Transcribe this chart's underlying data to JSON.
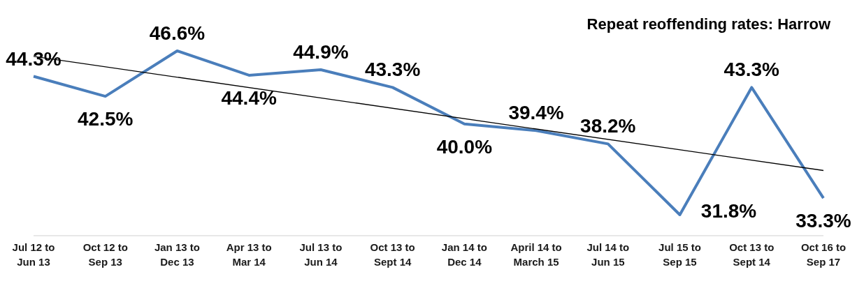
{
  "chart_data": {
    "type": "line",
    "title": "Repeat reoffending rates: Harrow",
    "categories": [
      "Jul 12 to Jun 13",
      "Oct 12 to Sep 13",
      "Jan 13 to Dec 13",
      "Apr 13  to Mar 14",
      "Jul 13 to Jun 14",
      "Oct 13 to Sept 14",
      "Jan 14 to Dec 14",
      "April 14 to March 15",
      "Jul 14 to Jun 15",
      "Jul 15 to Sep 15",
      "Oct 13 to Sept 14",
      "Oct 16 to Sep 17"
    ],
    "series": [
      {
        "color": "#4a7ebb",
        "values": [
          44.3,
          42.5,
          46.6,
          44.4,
          44.9,
          43.3,
          40.0,
          39.4,
          38.2,
          31.8,
          43.3,
          33.3
        ],
        "value_labels": [
          "44.3%",
          "42.5%",
          "46.6%",
          "44.4%",
          "44.9%",
          "43.3%",
          "40.0%",
          "39.4%",
          "38.2%",
          "31.8%",
          "43.3%",
          "33.3%"
        ]
      },
      {
        "type": "line",
        "color": "#000000",
        "x": [
          "Jul 12 to Jun 13",
          "Oct 16 to Sep 17"
        ],
        "values": [
          46.1,
          35.8
        ]
      }
    ],
    "legend": false,
    "grid": false,
    "marker": "none",
    "line_style": "solid"
  }
}
